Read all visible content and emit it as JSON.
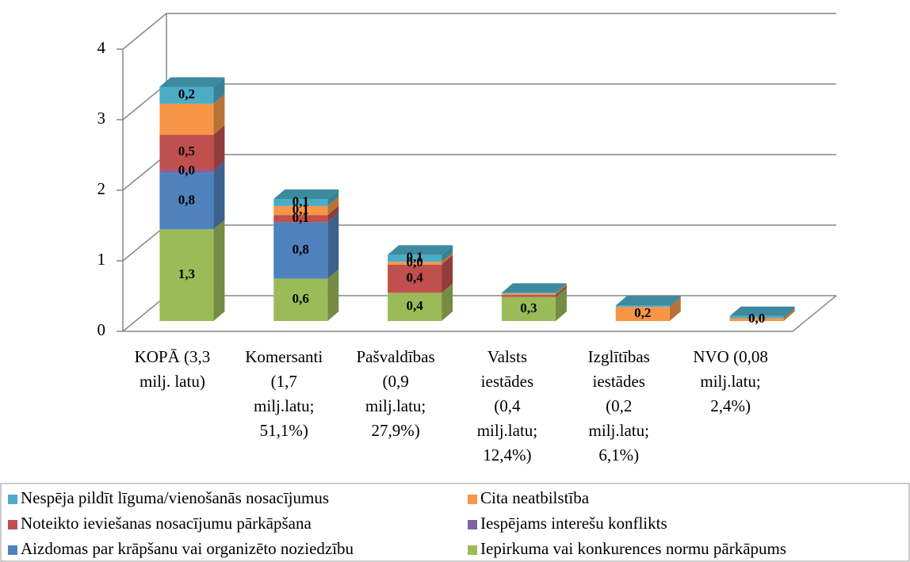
{
  "chart_data": {
    "type": "stacked_bar_3d",
    "categories": [
      "KOPĀ (3,3\nmilj. latu)",
      "Komersanti\n(1,7\nmilj.latu;\n51,1%)",
      "Pašvaldības\n(0,9\nmilj.latu;\n27,9%)",
      "Valsts\niestādes\n(0,4\nmilj.latu;\n12,4%)",
      "Izglītības\niestādes\n(0,2\nmilj.latu;\n6,1%)",
      "NVO (0,08\nmilj.latu;\n2,4%)"
    ],
    "series": [
      {
        "name": "Iepirkuma vai konkurences normu pārkāpums",
        "color": "#9bbb59",
        "values": [
          1.3,
          0.6,
          0.4,
          0.34,
          0,
          0
        ],
        "value_labels": [
          "1,3",
          "0,6",
          "0,4",
          "0,3",
          null,
          null
        ]
      },
      {
        "name": "Aizdomas par krāpšanu vai organizēto noziedzību",
        "color": "#4f81bd",
        "values": [
          0.8,
          0.8,
          0,
          0,
          0,
          0
        ],
        "value_labels": [
          "0,8",
          "0,8",
          null,
          null,
          null,
          null
        ]
      },
      {
        "name": "Iespējams interešu konflikts",
        "color": "#8064a2",
        "values": [
          0.04,
          0,
          0,
          0,
          0,
          0
        ],
        "value_labels": [
          "0,0",
          null,
          null,
          null,
          null,
          null
        ]
      },
      {
        "name": "Noteikto ieviešanas nosacījumu pārkāpšana",
        "color": "#c0504d",
        "values": [
          0.5,
          0.1,
          0.4,
          0.03,
          0,
          0
        ],
        "value_labels": [
          "0,5",
          "0,1",
          "0,4",
          null,
          null,
          null
        ]
      },
      {
        "name": "Cita neatbilstība",
        "color": "#f79646",
        "values": [
          0.44,
          0.13,
          0.04,
          0.02,
          0.2,
          0.04
        ],
        "value_labels": [
          null,
          "0,1",
          "0,0",
          null,
          "0,2",
          "0,0"
        ]
      },
      {
        "name": "Nespēja pildīt līguma/vienošanās nosacījumus",
        "color": "#4bacc6",
        "values": [
          0.24,
          0.1,
          0.1,
          0.01,
          0.02,
          0.03
        ],
        "value_labels": [
          "0,2",
          "0,1",
          "0,1",
          null,
          null,
          null
        ]
      }
    ],
    "ylim": [
      0,
      4
    ],
    "yticks": [
      0,
      1,
      2,
      3,
      4
    ],
    "grid": true,
    "legend": "bottom"
  }
}
